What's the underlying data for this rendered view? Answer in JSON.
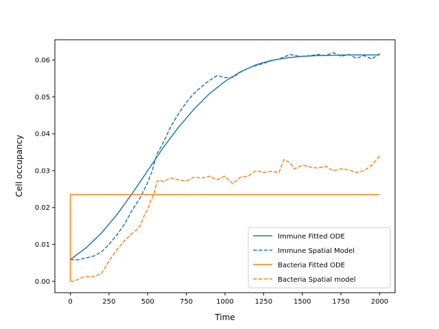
{
  "chart_data": {
    "type": "line",
    "title": "",
    "xlabel": "Time",
    "ylabel": "Cell occupancy",
    "xlim": [
      -100,
      2100
    ],
    "ylim": [
      -0.0031,
      0.0655
    ],
    "xticks": [
      0,
      250,
      500,
      750,
      1000,
      1250,
      1500,
      1750,
      2000
    ],
    "yticks": [
      0.0,
      0.01,
      0.02,
      0.03,
      0.04,
      0.05,
      0.06
    ],
    "xtick_labels": [
      "0",
      "250",
      "500",
      "750",
      "1000",
      "1250",
      "1500",
      "1750",
      "2000"
    ],
    "ytick_labels": [
      "0.00",
      "0.01",
      "0.02",
      "0.03",
      "0.04",
      "0.05",
      "0.06"
    ],
    "grid": false,
    "legend_position": "lower-right",
    "series": [
      {
        "name": "Immune Fitted ODE",
        "color": "#1f77b4",
        "style": "solid",
        "x": [
          0,
          100,
          200,
          300,
          400,
          500,
          600,
          700,
          800,
          900,
          1000,
          1100,
          1200,
          1300,
          1400,
          1500,
          1600,
          1700,
          1800,
          1900,
          2000
        ],
        "y": [
          0.0059,
          0.009,
          0.013,
          0.018,
          0.0238,
          0.03,
          0.0362,
          0.0418,
          0.0467,
          0.0509,
          0.0542,
          0.0568,
          0.0587,
          0.0599,
          0.0606,
          0.061,
          0.0612,
          0.0613,
          0.0614,
          0.0614,
          0.0614
        ]
      },
      {
        "name": "Immune Spatial Model",
        "color": "#1f77b4",
        "style": "dashed",
        "x": [
          0,
          25,
          50,
          100,
          150,
          200,
          250,
          300,
          350,
          400,
          450,
          500,
          530,
          560,
          600,
          650,
          700,
          750,
          800,
          850,
          900,
          950,
          1000,
          1050,
          1100,
          1150,
          1200,
          1250,
          1300,
          1350,
          1380,
          1420,
          1450,
          1500,
          1550,
          1600,
          1650,
          1700,
          1750,
          1800,
          1850,
          1900,
          1950,
          2000
        ],
        "y": [
          0.0059,
          0.0058,
          0.0058,
          0.0063,
          0.0068,
          0.0079,
          0.01,
          0.0125,
          0.0155,
          0.0193,
          0.0225,
          0.0268,
          0.03,
          0.0345,
          0.0375,
          0.042,
          0.0455,
          0.0485,
          0.051,
          0.0528,
          0.0545,
          0.0558,
          0.0552,
          0.0553,
          0.0567,
          0.0578,
          0.0585,
          0.0591,
          0.0598,
          0.0603,
          0.0608,
          0.0615,
          0.0612,
          0.061,
          0.0612,
          0.0615,
          0.0612,
          0.062,
          0.061,
          0.0615,
          0.0605,
          0.0612,
          0.0603,
          0.0617
        ]
      },
      {
        "name": "Bacteria Fitted ODE",
        "color": "#ff7f0e",
        "style": "solid",
        "x": [
          0,
          0,
          2000
        ],
        "y": [
          0.0,
          0.0235,
          0.0235
        ]
      },
      {
        "name": "Bacteria Spatial model",
        "color": "#ff7f0e",
        "style": "dashed",
        "x": [
          0,
          25,
          50,
          75,
          100,
          150,
          200,
          250,
          300,
          350,
          400,
          430,
          450,
          480,
          500,
          520,
          540,
          560,
          580,
          600,
          650,
          700,
          750,
          800,
          850,
          900,
          950,
          1000,
          1050,
          1100,
          1150,
          1200,
          1250,
          1300,
          1350,
          1380,
          1420,
          1450,
          1500,
          1550,
          1600,
          1650,
          1700,
          1750,
          1800,
          1850,
          1900,
          1950,
          2000
        ],
        "y": [
          0.0,
          0.0,
          0.0005,
          0.001,
          0.0012,
          0.0013,
          0.002,
          0.0055,
          0.0085,
          0.011,
          0.013,
          0.014,
          0.015,
          0.018,
          0.0195,
          0.022,
          0.0235,
          0.027,
          0.0275,
          0.027,
          0.028,
          0.0275,
          0.0272,
          0.0282,
          0.028,
          0.0285,
          0.0275,
          0.0285,
          0.0265,
          0.0282,
          0.0285,
          0.03,
          0.0295,
          0.0298,
          0.0295,
          0.033,
          0.0322,
          0.0305,
          0.0315,
          0.031,
          0.0307,
          0.0312,
          0.03,
          0.0305,
          0.0302,
          0.0295,
          0.03,
          0.0315,
          0.034
        ]
      }
    ]
  }
}
